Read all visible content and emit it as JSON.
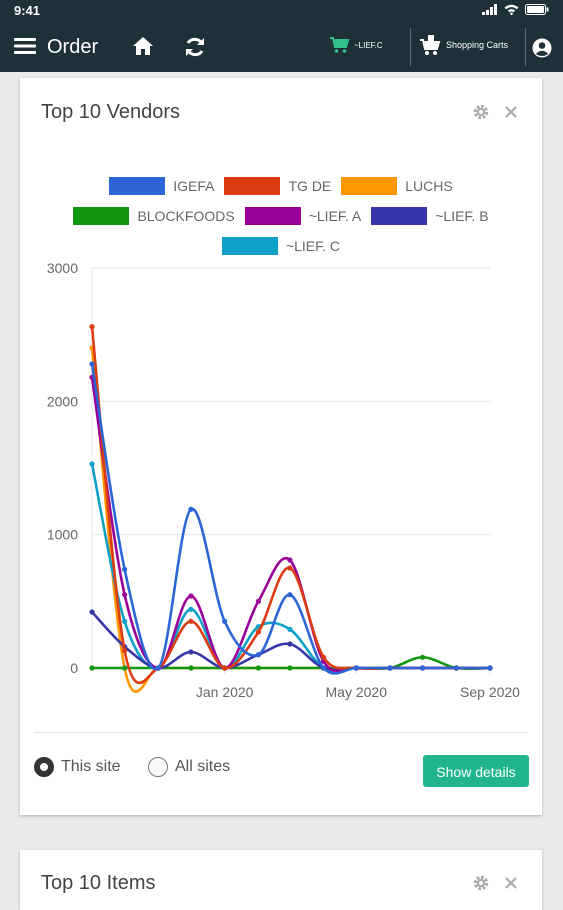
{
  "status_bar": {
    "time": "9:41"
  },
  "nav": {
    "title": "Order",
    "cart_vendor_label": "~LIEF.C",
    "shopping_carts_label": "Shopping Carts",
    "icons": [
      "menu-icon",
      "home-icon",
      "refresh-icon",
      "cart-icon",
      "shopping-carts-icon",
      "user-icon"
    ]
  },
  "vendors_card": {
    "title": "Top 10 Vendors",
    "radio_this_site": "This site",
    "radio_all_sites": "All sites",
    "selected_scope": "This site",
    "show_details_label": "Show details",
    "accent_color": "#21b58f"
  },
  "items_card": {
    "title": "Top 10 Items"
  },
  "chart_data": {
    "type": "line",
    "title": "",
    "xlabel": "",
    "ylabel": "",
    "ylim": [
      0,
      3000
    ],
    "y_ticks": [
      "0",
      "1000",
      "2000",
      "3000"
    ],
    "x_range": [
      "2019-09-01",
      "2020-09-01"
    ],
    "x_ticks": [
      {
        "date": "2020-01-01",
        "label": "Jan 2020"
      },
      {
        "date": "2020-05-01",
        "label": "May 2020"
      },
      {
        "date": "2020-09-01",
        "label": "Sep 2020"
      }
    ],
    "grid": true,
    "legend_position": "top-center",
    "dates": [
      "2019-09-01",
      "2019-10-01",
      "2019-11-01",
      "2019-12-01",
      "2020-01-01",
      "2020-02-01",
      "2020-03-01",
      "2020-04-01",
      "2020-05-01",
      "2020-06-01",
      "2020-07-01",
      "2020-08-01",
      "2020-09-01"
    ],
    "series": [
      {
        "name": "IGEFA",
        "color": "#2d65d6",
        "values": [
          2280,
          740,
          0,
          1190,
          350,
          100,
          550,
          0,
          0,
          0,
          0,
          0,
          0
        ]
      },
      {
        "name": "TG DE",
        "color": "#dc3c12",
        "values": [
          2560,
          130,
          0,
          350,
          0,
          270,
          750,
          80,
          0,
          0,
          0,
          0,
          0
        ]
      },
      {
        "name": "LUCHS",
        "color": "#ff9800",
        "values": [
          2400,
          0,
          0,
          0,
          0,
          0,
          0,
          0,
          0,
          0,
          0,
          0,
          0
        ]
      },
      {
        "name": "BLOCKFOODS",
        "color": "#129712",
        "values": [
          0,
          0,
          0,
          0,
          0,
          0,
          0,
          0,
          0,
          0,
          80,
          0,
          0
        ]
      },
      {
        "name": "~LIEF. A",
        "color": "#990099",
        "values": [
          2180,
          550,
          0,
          540,
          0,
          500,
          810,
          50,
          0,
          0,
          0,
          0,
          0
        ]
      },
      {
        "name": "~LIEF. B",
        "color": "#3636a8",
        "values": [
          420,
          160,
          0,
          120,
          0,
          100,
          180,
          0,
          0,
          0,
          0,
          0,
          0
        ]
      },
      {
        "name": "~LIEF. C",
        "color": "#0fa0c8",
        "values": [
          1530,
          350,
          0,
          440,
          0,
          310,
          290,
          0,
          0,
          0,
          0,
          0,
          0
        ]
      }
    ]
  }
}
